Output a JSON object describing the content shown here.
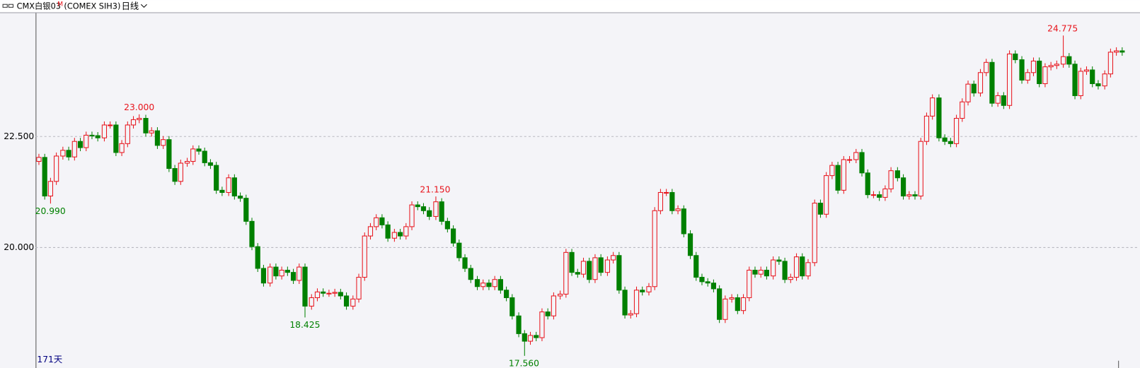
{
  "chart_data": {
    "type": "candlestick",
    "title": "CMX白银03",
    "title_mark": "M",
    "symbol": "(COMEX SIH3)",
    "period": "日线",
    "footer": "171天",
    "up_color": "#e8141c",
    "down_color": "#008000",
    "grid": true,
    "ylim": [
      17.32,
      25.28
    ],
    "yticks": [
      {
        "value": 20,
        "label": "20.000"
      },
      {
        "value": 22.5,
        "label": "22.500"
      }
    ],
    "open": [
      21.94,
      22.03,
      21.16,
      21.49,
      22.06,
      22.19,
      22.04,
      22.39,
      22.25,
      22.53,
      22.52,
      22.47,
      22.76,
      22.76,
      22.14,
      22.34,
      22.76,
      22.88,
      22.91,
      22.58,
      22.63,
      22.3,
      22.43,
      21.78,
      21.49,
      21.9,
      21.94,
      22.22,
      22.17,
      21.91,
      21.85,
      21.29,
      21.24,
      21.57,
      21.16,
      21.11,
      20.59,
      20.02,
      19.53,
      19.2,
      19.56,
      19.36,
      19.49,
      19.44,
      19.26,
      19.56,
      18.68,
      18.87,
      19.0,
      18.97,
      18.97,
      18.99,
      18.91,
      18.68,
      18.84,
      19.33,
      20.26,
      20.47,
      20.67,
      20.51,
      20.21,
      20.34,
      20.26,
      20.47,
      20.96,
      20.92,
      20.83,
      20.7,
      21.03,
      20.59,
      20.42,
      20.1,
      19.77,
      19.53,
      19.28,
      19.12,
      19.2,
      19.12,
      19.28,
      19.04,
      18.87,
      18.46,
      18.06,
      17.89,
      18.02,
      17.97,
      18.55,
      18.46,
      18.91,
      18.95,
      19.89,
      19.44,
      19.4,
      19.69,
      19.28,
      19.77,
      19.44,
      19.72,
      19.82,
      19.04,
      18.48,
      18.51,
      19.04,
      19.0,
      19.12,
      20.83,
      21.24,
      21.24,
      20.83,
      20.87,
      20.31,
      19.82,
      19.33,
      19.23,
      19.2,
      19.07,
      18.38,
      18.84,
      18.87,
      18.58,
      18.87,
      19.49,
      19.4,
      19.49,
      19.36,
      19.72,
      19.69,
      19.28,
      19.33,
      19.79,
      19.36,
      19.66,
      21.0,
      20.75,
      21.62,
      21.85,
      21.29,
      21.98,
      21.98,
      22.14,
      21.68,
      21.19,
      21.19,
      21.13,
      21.32,
      21.73,
      21.57,
      21.16,
      21.19,
      21.16,
      22.39,
      22.96,
      23.37,
      22.47,
      22.39,
      22.34,
      22.91,
      23.28,
      23.68,
      23.48,
      23.94,
      24.17,
      23.25,
      23.42,
      23.2,
      24.36,
      24.23,
      23.77,
      23.94,
      24.2,
      23.69,
      24.07,
      24.1,
      24.13,
      24.3,
      24.13,
      23.42,
      23.97,
      24.0,
      23.69,
      23.64,
      23.91,
      24.4,
      24.43
    ],
    "high": [
      22.11,
      22.11,
      21.57,
      22.14,
      22.27,
      22.27,
      22.47,
      22.47,
      22.61,
      22.61,
      22.6,
      22.84,
      22.84,
      22.84,
      22.42,
      22.84,
      22.96,
      23.0,
      22.99,
      22.71,
      22.71,
      22.51,
      22.51,
      21.86,
      21.98,
      22.02,
      22.3,
      22.3,
      22.25,
      21.99,
      21.93,
      21.37,
      21.65,
      21.65,
      21.24,
      21.19,
      20.67,
      20.1,
      19.61,
      19.64,
      19.64,
      19.57,
      19.57,
      19.52,
      19.64,
      19.64,
      18.95,
      19.08,
      19.08,
      19.05,
      19.07,
      19.07,
      18.99,
      18.92,
      19.41,
      20.34,
      20.55,
      20.75,
      20.75,
      20.59,
      20.42,
      20.42,
      20.55,
      21.04,
      21.04,
      21.0,
      20.91,
      21.15,
      21.11,
      20.67,
      20.5,
      20.18,
      19.85,
      19.61,
      19.36,
      19.28,
      19.28,
      19.36,
      19.36,
      19.12,
      18.95,
      18.54,
      18.14,
      18.1,
      18.1,
      18.63,
      18.63,
      18.99,
      19.03,
      19.97,
      19.97,
      19.52,
      19.77,
      19.77,
      19.85,
      19.85,
      19.8,
      19.9,
      19.9,
      19.12,
      18.59,
      19.12,
      19.12,
      19.2,
      20.91,
      21.32,
      21.32,
      21.32,
      20.95,
      20.95,
      20.39,
      19.9,
      19.41,
      19.31,
      19.28,
      19.15,
      18.92,
      18.95,
      18.95,
      18.95,
      19.57,
      19.57,
      19.57,
      19.57,
      19.8,
      19.8,
      19.77,
      19.41,
      19.87,
      19.87,
      19.74,
      21.08,
      21.08,
      21.7,
      21.93,
      21.93,
      22.06,
      22.06,
      22.22,
      22.22,
      21.76,
      21.27,
      21.27,
      21.4,
      21.81,
      21.81,
      21.65,
      21.27,
      21.27,
      22.47,
      23.04,
      23.45,
      23.45,
      22.55,
      22.47,
      22.99,
      23.36,
      23.76,
      23.76,
      24.02,
      24.25,
      24.25,
      23.5,
      23.5,
      24.44,
      24.44,
      24.31,
      24.02,
      24.28,
      24.28,
      24.15,
      24.18,
      24.21,
      24.775,
      24.38,
      24.21,
      24.05,
      24.08,
      24.08,
      23.77,
      23.99,
      24.48,
      24.51,
      24.51
    ],
    "low": [
      21.86,
      21.08,
      20.99,
      21.41,
      21.98,
      21.96,
      21.96,
      22.17,
      22.17,
      22.44,
      22.39,
      22.39,
      22.68,
      22.06,
      22.06,
      22.26,
      22.68,
      22.8,
      22.5,
      22.5,
      22.22,
      22.22,
      21.7,
      21.41,
      21.41,
      21.82,
      21.86,
      22.09,
      21.83,
      21.77,
      21.21,
      21.16,
      21.16,
      21.08,
      21.03,
      20.51,
      19.94,
      19.45,
      19.12,
      19.12,
      19.28,
      19.28,
      19.36,
      19.18,
      19.18,
      18.425,
      18.6,
      18.79,
      18.89,
      18.89,
      18.89,
      18.83,
      18.6,
      18.6,
      18.76,
      19.25,
      20.18,
      20.39,
      20.43,
      20.13,
      20.13,
      20.18,
      20.18,
      20.39,
      20.84,
      20.75,
      20.62,
      20.62,
      20.51,
      20.34,
      20.02,
      19.69,
      19.45,
      19.2,
      19.04,
      19.04,
      19.04,
      19.04,
      18.96,
      18.79,
      18.38,
      17.98,
      17.56,
      17.81,
      17.89,
      17.89,
      18.38,
      18.38,
      18.83,
      18.87,
      19.36,
      19.32,
      19.32,
      19.2,
      19.2,
      19.36,
      19.36,
      19.64,
      18.96,
      18.4,
      18.4,
      18.43,
      18.92,
      18.92,
      19.04,
      20.75,
      21.16,
      20.75,
      20.75,
      20.23,
      19.74,
      19.25,
      19.15,
      19.12,
      18.99,
      18.3,
      18.3,
      18.76,
      18.5,
      18.5,
      18.79,
      19.32,
      19.32,
      19.28,
      19.28,
      19.61,
      19.2,
      19.2,
      19.25,
      19.28,
      19.28,
      19.58,
      20.67,
      20.67,
      21.54,
      21.21,
      21.21,
      21.9,
      21.9,
      21.6,
      21.11,
      21.11,
      21.05,
      21.05,
      21.24,
      21.49,
      21.08,
      21.08,
      21.08,
      21.08,
      22.31,
      22.88,
      22.39,
      22.31,
      22.26,
      22.26,
      22.83,
      23.2,
      23.4,
      23.4,
      23.86,
      23.17,
      23.17,
      23.12,
      23.12,
      24.15,
      23.69,
      23.69,
      23.86,
      23.61,
      23.61,
      23.99,
      24.02,
      24.05,
      24.05,
      23.34,
      23.34,
      23.89,
      23.61,
      23.56,
      23.56,
      23.83,
      24.32,
      24.32
    ],
    "close": [
      22.03,
      21.16,
      21.49,
      22.06,
      22.19,
      22.04,
      22.39,
      22.25,
      22.53,
      22.52,
      22.47,
      22.76,
      22.76,
      22.14,
      22.34,
      22.76,
      22.88,
      22.91,
      22.58,
      22.63,
      22.3,
      22.43,
      21.78,
      21.49,
      21.9,
      21.94,
      22.22,
      22.17,
      21.91,
      21.85,
      21.29,
      21.24,
      21.57,
      21.16,
      21.11,
      20.59,
      20.02,
      19.53,
      19.2,
      19.56,
      19.36,
      19.49,
      19.44,
      19.26,
      19.56,
      18.68,
      18.87,
      19.0,
      18.97,
      18.97,
      18.99,
      18.91,
      18.68,
      18.84,
      19.33,
      20.26,
      20.47,
      20.67,
      20.51,
      20.21,
      20.34,
      20.26,
      20.47,
      20.96,
      20.92,
      20.83,
      20.7,
      21.03,
      20.59,
      20.42,
      20.1,
      19.77,
      19.53,
      19.28,
      19.12,
      19.2,
      19.12,
      19.28,
      19.04,
      18.87,
      18.46,
      18.06,
      17.89,
      18.02,
      17.97,
      18.55,
      18.46,
      18.91,
      18.95,
      19.89,
      19.44,
      19.4,
      19.69,
      19.28,
      19.77,
      19.44,
      19.72,
      19.82,
      19.04,
      18.48,
      18.51,
      19.04,
      19.0,
      19.12,
      20.83,
      21.24,
      21.24,
      20.83,
      20.87,
      20.31,
      19.82,
      19.33,
      19.23,
      19.2,
      19.07,
      18.38,
      18.84,
      18.87,
      18.58,
      18.87,
      19.49,
      19.4,
      19.49,
      19.36,
      19.72,
      19.69,
      19.28,
      19.33,
      19.79,
      19.36,
      19.66,
      21.0,
      20.75,
      21.62,
      21.85,
      21.29,
      21.98,
      21.98,
      22.14,
      21.68,
      21.19,
      21.19,
      21.13,
      21.32,
      21.73,
      21.57,
      21.16,
      21.19,
      21.16,
      22.39,
      22.96,
      23.37,
      22.47,
      22.39,
      22.34,
      22.91,
      23.28,
      23.68,
      23.48,
      23.94,
      24.17,
      23.25,
      23.42,
      23.2,
      24.36,
      24.23,
      23.77,
      23.94,
      24.2,
      23.69,
      24.07,
      24.1,
      24.13,
      24.3,
      24.13,
      23.42,
      23.97,
      24.0,
      23.69,
      23.64,
      23.91,
      24.4,
      24.43,
      24.4
    ],
    "annotations": [
      {
        "value": 20.99,
        "label": "20.990"
      },
      {
        "value": 23,
        "label": "23.000"
      },
      {
        "value": 18.425,
        "label": "18.425"
      },
      {
        "value": 21.15,
        "label": "21.150"
      },
      {
        "value": 17.56,
        "label": "17.560"
      },
      {
        "value": 24.775
      }
    ]
  }
}
